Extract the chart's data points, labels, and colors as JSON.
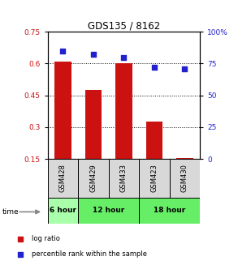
{
  "title": "GDS135 / 8162",
  "samples": [
    "GSM428",
    "GSM429",
    "GSM433",
    "GSM423",
    "GSM430"
  ],
  "log_ratio": [
    0.61,
    0.475,
    0.6,
    0.325,
    0.155
  ],
  "percentile": [
    85,
    82,
    80,
    72,
    71
  ],
  "bar_baseline": 0.15,
  "left_ylim": [
    0.15,
    0.75
  ],
  "right_ylim": [
    0,
    100
  ],
  "left_yticks": [
    0.15,
    0.3,
    0.45,
    0.6,
    0.75
  ],
  "right_yticks": [
    0,
    25,
    50,
    75,
    100
  ],
  "bar_color": "#cc1111",
  "scatter_color": "#2222cc",
  "time_groups": [
    {
      "label": "6 hour",
      "start": 0,
      "end": 1,
      "color": "#aaffaa"
    },
    {
      "label": "12 hour",
      "start": 1,
      "end": 3,
      "color": "#66ee66"
    },
    {
      "label": "18 hour",
      "start": 3,
      "end": 5,
      "color": "#66ee66"
    }
  ],
  "legend_bar_label": "log ratio",
  "legend_scatter_label": "percentile rank within the sample",
  "time_label": "time",
  "sample_bg_color": "#d8d8d8",
  "fig_bg": "#ffffff"
}
